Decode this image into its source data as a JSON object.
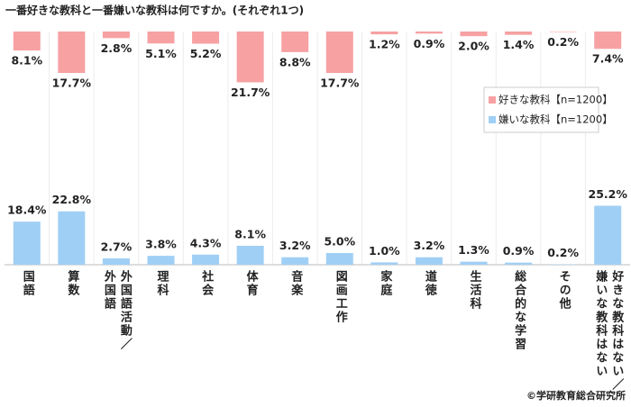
{
  "chart_data": {
    "type": "bar",
    "title": "一番好きな教科と一番嫌いな教科は何ですか。(それぞれ1つ)",
    "categories": [
      "国語",
      "算数",
      "外国語活動／外国語",
      "理科",
      "社会",
      "体育",
      "音楽",
      "図画工作",
      "家庭",
      "道徳",
      "生活科",
      "総合的な学習",
      "その他",
      "好きな教科はない／嫌いな教科はない"
    ],
    "series": [
      {
        "name": "好きな教科【n=1200】",
        "color": "#f7a1a3",
        "values": [
          8.1,
          17.7,
          2.8,
          5.1,
          5.2,
          21.7,
          8.8,
          17.7,
          1.2,
          0.9,
          2.0,
          1.4,
          0.2,
          7.4
        ],
        "value_labels": [
          "8.1%",
          "17.7%",
          "2.8%",
          "5.1%",
          "5.2%",
          "21.7%",
          "8.8%",
          "17.7%",
          "1.2%",
          "0.9%",
          "2.0%",
          "1.4%",
          "0.2%",
          "7.4%"
        ]
      },
      {
        "name": "嫌いな教科【n=1200】",
        "color": "#a0cff5",
        "values": [
          18.4,
          22.8,
          2.7,
          3.8,
          4.3,
          8.1,
          3.2,
          5.0,
          1.0,
          3.2,
          1.3,
          0.9,
          0.2,
          25.2
        ],
        "value_labels": [
          "18.4%",
          "22.8%",
          "2.7%",
          "3.8%",
          "4.3%",
          "8.1%",
          "3.2%",
          "5.0%",
          "1.0%",
          "3.2%",
          "1.3%",
          "0.9%",
          "0.2%",
          "25.2%"
        ]
      }
    ],
    "legend": "upper right",
    "source": "©学研教育総合研究所"
  }
}
